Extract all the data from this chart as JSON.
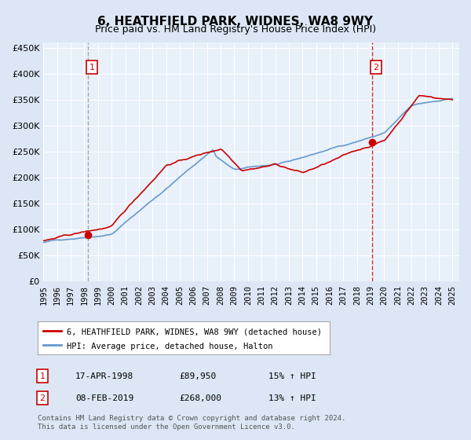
{
  "title": "6, HEATHFIELD PARK, WIDNES, WA8 9WY",
  "subtitle": "Price paid vs. HM Land Registry's House Price Index (HPI)",
  "line1_label": "6, HEATHFIELD PARK, WIDNES, WA8 9WY (detached house)",
  "line2_label": "HPI: Average price, detached house, Halton",
  "purchase1_date": "17-APR-1998",
  "purchase1_price": 89950,
  "purchase1_pct": "15%",
  "purchase2_date": "08-FEB-2019",
  "purchase2_price": 268000,
  "purchase2_pct": "13%",
  "footer": "Contains HM Land Registry data © Crown copyright and database right 2024.\nThis data is licensed under the Open Government Licence v3.0.",
  "hpi_color": "#6699cc",
  "price_color": "#cc0000",
  "vline1_color": "#888888",
  "vline2_color": "#cc0000",
  "bg_color": "#dce6f4",
  "plot_bg": "#e8f0fa",
  "grid_color": "#ffffff",
  "point_color": "#cc0000",
  "box_color": "#cc0000",
  "ylim": [
    0,
    460000
  ],
  "xlim_start": 1995.0,
  "xlim_end": 2025.5
}
